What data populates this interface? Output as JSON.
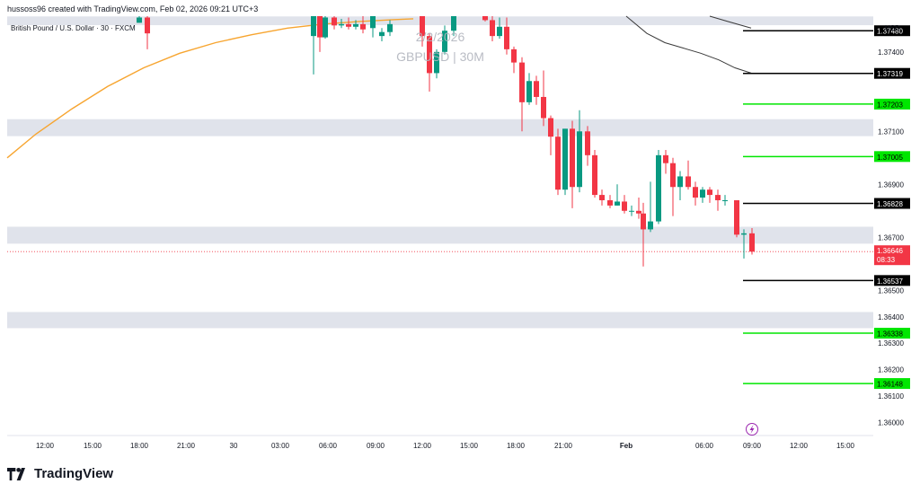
{
  "header": {
    "created_by": "hussoss96 created with TradingView.com, Feb 02, 2026 09:21 UTC+3"
  },
  "legend": {
    "symbol_title": "British Pound / U.S. Dollar · 30 · FXCM"
  },
  "watermark": {
    "date": "2/2/2026",
    "symbol": "GBPUSD | 30M"
  },
  "price_axis": {
    "unit": "USD"
  },
  "brand": {
    "name": "TradingView",
    "logo_icon": "tradingview-logo-icon"
  },
  "colors": {
    "bull": "#089981",
    "bear": "#f23645",
    "ma_orange": "#f7a530",
    "ma_dark": "#3a3a3a",
    "zone": "#e0e3eb",
    "green_level": "#00e600",
    "black_level": "#000000",
    "current_price": "#f23645",
    "lightning": "#9c27b0"
  },
  "chart_data": {
    "type": "candlestick",
    "symbol": "British Pound / U.S. Dollar",
    "interval": "30",
    "ylim": [
      1.35955,
      1.37535
    ],
    "y_ticks": [
      "1.37400",
      "1.37100",
      "1.36900",
      "1.36700",
      "1.36500",
      "1.36400",
      "1.36300",
      "1.36200",
      "1.36100",
      "1.36000"
    ],
    "x_ticks": [
      "12:00",
      "15:00",
      "18:00",
      "21:00",
      "30",
      "03:00",
      "06:00",
      "09:00",
      "12:00",
      "15:00",
      "18:00",
      "21:00",
      "Feb",
      "06:00",
      "09:00",
      "12:00",
      "15:00"
    ],
    "grey_zones": [
      [
        1.37501,
        1.37534
      ],
      [
        1.37082,
        1.37146
      ],
      [
        1.36676,
        1.3674
      ],
      [
        1.36357,
        1.36418
      ]
    ],
    "levels": [
      {
        "price": "1.37480",
        "value": 1.3748,
        "color": "black"
      },
      {
        "price": "1.37319",
        "value": 1.37319,
        "color": "black"
      },
      {
        "price": "1.37203",
        "value": 1.37203,
        "color": "green"
      },
      {
        "price": "1.37005",
        "value": 1.37005,
        "color": "green"
      },
      {
        "price": "1.36828",
        "value": 1.36828,
        "color": "black"
      },
      {
        "price": "1.36537",
        "value": 1.36537,
        "color": "black"
      },
      {
        "price": "1.36338",
        "value": 1.36338,
        "color": "green"
      },
      {
        "price": "1.36148",
        "value": 1.36148,
        "color": "green"
      }
    ],
    "current_price": {
      "price": "1.36646",
      "value": 1.36646,
      "countdown": "08:33"
    },
    "candles": [
      {
        "x": 155,
        "o": 1.3751,
        "h": 1.3756,
        "l": 1.3751,
        "c": 1.3753
      },
      {
        "x": 164,
        "o": 1.3753,
        "h": 1.3756,
        "l": 1.3741,
        "c": 1.3747
      },
      {
        "x": 349,
        "o": 1.3746,
        "h": 1.3754,
        "l": 1.37315,
        "c": 1.3754
      },
      {
        "x": 356,
        "o": 1.3754,
        "h": 1.3755,
        "l": 1.374,
        "c": 1.37455
      },
      {
        "x": 362,
        "o": 1.37455,
        "h": 1.3755,
        "l": 1.3745,
        "c": 1.3753
      },
      {
        "x": 372,
        "o": 1.3753,
        "h": 1.3755,
        "l": 1.37485,
        "c": 1.375
      },
      {
        "x": 380,
        "o": 1.375,
        "h": 1.37525,
        "l": 1.3749,
        "c": 1.37505
      },
      {
        "x": 388,
        "o": 1.37505,
        "h": 1.3753,
        "l": 1.37485,
        "c": 1.37495
      },
      {
        "x": 396,
        "o": 1.37495,
        "h": 1.3752,
        "l": 1.37485,
        "c": 1.37505
      },
      {
        "x": 404,
        "o": 1.37505,
        "h": 1.37535,
        "l": 1.3747,
        "c": 1.37485
      },
      {
        "x": 415,
        "o": 1.3749,
        "h": 1.3754,
        "l": 1.37455,
        "c": 1.3754
      },
      {
        "x": 425,
        "o": 1.3746,
        "h": 1.3749,
        "l": 1.3744,
        "c": 1.37475
      },
      {
        "x": 434,
        "o": 1.37475,
        "h": 1.3752,
        "l": 1.3746,
        "c": 1.37505
      },
      {
        "x": 470,
        "o": 1.3754,
        "h": 1.3756,
        "l": 1.3742,
        "c": 1.3746
      },
      {
        "x": 478,
        "o": 1.3746,
        "h": 1.3747,
        "l": 1.3725,
        "c": 1.3732
      },
      {
        "x": 486,
        "o": 1.3732,
        "h": 1.3741,
        "l": 1.373,
        "c": 1.374
      },
      {
        "x": 495,
        "o": 1.374,
        "h": 1.375,
        "l": 1.3739,
        "c": 1.3748
      },
      {
        "x": 505,
        "o": 1.3748,
        "h": 1.3755,
        "l": 1.3746,
        "c": 1.3754
      },
      {
        "x": 540,
        "o": 1.3754,
        "h": 1.3755,
        "l": 1.37515,
        "c": 1.3752
      },
      {
        "x": 548,
        "o": 1.3752,
        "h": 1.3754,
        "l": 1.3744,
        "c": 1.3746
      },
      {
        "x": 556,
        "o": 1.3746,
        "h": 1.3753,
        "l": 1.3745,
        "c": 1.37495
      },
      {
        "x": 564,
        "o": 1.37495,
        "h": 1.3753,
        "l": 1.3739,
        "c": 1.3741
      },
      {
        "x": 572,
        "o": 1.3741,
        "h": 1.3742,
        "l": 1.3732,
        "c": 1.3736
      },
      {
        "x": 581,
        "o": 1.3736,
        "h": 1.3738,
        "l": 1.371,
        "c": 1.3721
      },
      {
        "x": 589,
        "o": 1.3721,
        "h": 1.3732,
        "l": 1.372,
        "c": 1.3729
      },
      {
        "x": 597,
        "o": 1.3729,
        "h": 1.3731,
        "l": 1.372,
        "c": 1.3723
      },
      {
        "x": 605,
        "o": 1.3723,
        "h": 1.3733,
        "l": 1.3712,
        "c": 1.3715
      },
      {
        "x": 613,
        "o": 1.3715,
        "h": 1.3716,
        "l": 1.3701,
        "c": 1.3708
      },
      {
        "x": 621,
        "o": 1.3708,
        "h": 1.3711,
        "l": 1.3686,
        "c": 1.3688
      },
      {
        "x": 629,
        "o": 1.3688,
        "h": 1.3711,
        "l": 1.3686,
        "c": 1.3711
      },
      {
        "x": 637,
        "o": 1.3711,
        "h": 1.3714,
        "l": 1.3681,
        "c": 1.3689
      },
      {
        "x": 645,
        "o": 1.3689,
        "h": 1.3718,
        "l": 1.3687,
        "c": 1.371
      },
      {
        "x": 654,
        "o": 1.371,
        "h": 1.3712,
        "l": 1.3697,
        "c": 1.3701
      },
      {
        "x": 662,
        "o": 1.3701,
        "h": 1.3703,
        "l": 1.3685,
        "c": 1.3686
      },
      {
        "x": 670,
        "o": 1.3686,
        "h": 1.3688,
        "l": 1.3682,
        "c": 1.3684
      },
      {
        "x": 679,
        "o": 1.3684,
        "h": 1.3686,
        "l": 1.3681,
        "c": 1.3682
      },
      {
        "x": 687,
        "o": 1.3682,
        "h": 1.369,
        "l": 1.3682,
        "c": 1.36835
      },
      {
        "x": 695,
        "o": 1.36835,
        "h": 1.3686,
        "l": 1.3679,
        "c": 1.368
      },
      {
        "x": 703,
        "o": 1.368,
        "h": 1.3682,
        "l": 1.3678,
        "c": 1.368
      },
      {
        "x": 711,
        "o": 1.368,
        "h": 1.3685,
        "l": 1.3677,
        "c": 1.3679
      },
      {
        "x": 716,
        "o": 1.3679,
        "h": 1.3683,
        "l": 1.3659,
        "c": 1.3673
      },
      {
        "x": 724,
        "o": 1.3673,
        "h": 1.3691,
        "l": 1.3672,
        "c": 1.3676
      },
      {
        "x": 733,
        "o": 1.3676,
        "h": 1.3703,
        "l": 1.3675,
        "c": 1.3701
      },
      {
        "x": 741,
        "o": 1.3701,
        "h": 1.3703,
        "l": 1.3694,
        "c": 1.3698
      },
      {
        "x": 749,
        "o": 1.3698,
        "h": 1.37,
        "l": 1.3678,
        "c": 1.3689
      },
      {
        "x": 757,
        "o": 1.3689,
        "h": 1.3695,
        "l": 1.3684,
        "c": 1.3693
      },
      {
        "x": 766,
        "o": 1.3693,
        "h": 1.3699,
        "l": 1.3688,
        "c": 1.3689
      },
      {
        "x": 774,
        "o": 1.3689,
        "h": 1.3691,
        "l": 1.3682,
        "c": 1.3685
      },
      {
        "x": 782,
        "o": 1.3685,
        "h": 1.3689,
        "l": 1.3683,
        "c": 1.3688
      },
      {
        "x": 790,
        "o": 1.3688,
        "h": 1.3689,
        "l": 1.3683,
        "c": 1.3686
      },
      {
        "x": 799,
        "o": 1.3686,
        "h": 1.3688,
        "l": 1.368,
        "c": 1.3684
      },
      {
        "x": 807,
        "o": 1.3684,
        "h": 1.3686,
        "l": 1.3682,
        "c": 1.3684
      },
      {
        "x": 820,
        "o": 1.3684,
        "h": 1.3684,
        "l": 1.367,
        "c": 1.3671
      },
      {
        "x": 828,
        "o": 1.3671,
        "h": 1.3673,
        "l": 1.3662,
        "c": 1.36715
      },
      {
        "x": 837,
        "o": 1.36715,
        "h": 1.36735,
        "l": 1.36635,
        "c": 1.36646
      }
    ],
    "series": [
      {
        "type": "line",
        "color": "orange",
        "points": [
          [
            8,
            1.37
          ],
          [
            40,
            1.3709
          ],
          [
            80,
            1.37185
          ],
          [
            120,
            1.3727
          ],
          [
            160,
            1.3734
          ],
          [
            200,
            1.37395
          ],
          [
            240,
            1.37435
          ],
          [
            280,
            1.37465
          ],
          [
            320,
            1.3749
          ],
          [
            360,
            1.37505
          ],
          [
            400,
            1.37515
          ],
          [
            440,
            1.37522
          ],
          [
            460,
            1.37525
          ]
        ]
      },
      {
        "type": "line",
        "color": "dark",
        "points": [
          [
            790,
            1.3754
          ],
          [
            810,
            1.37515
          ],
          [
            836,
            1.3749
          ]
        ]
      },
      {
        "type": "line",
        "color": "dark",
        "points": [
          [
            697,
            1.3754
          ],
          [
            720,
            1.3747
          ],
          [
            740,
            1.37435
          ],
          [
            760,
            1.37415
          ],
          [
            780,
            1.37395
          ],
          [
            800,
            1.3737
          ],
          [
            818,
            1.3734
          ],
          [
            836,
            1.3732
          ]
        ]
      }
    ]
  }
}
